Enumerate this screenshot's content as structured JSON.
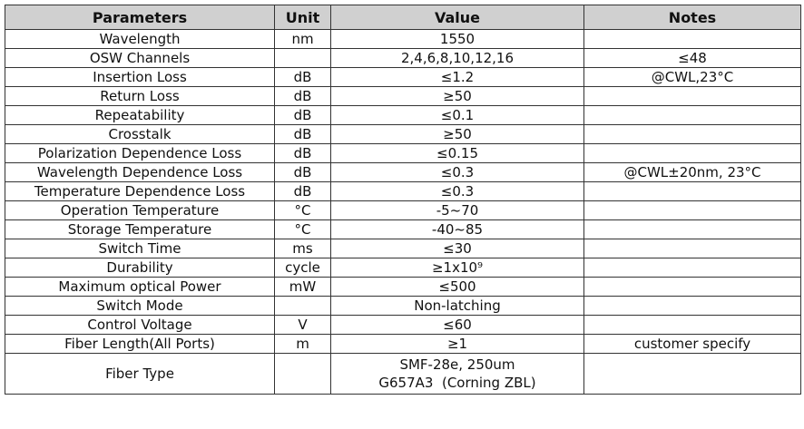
{
  "headers": {
    "parameters": "Parameters",
    "unit": "Unit",
    "value": "Value",
    "notes": "Notes"
  },
  "rows": [
    {
      "parameter": "Wavelength",
      "unit": "nm",
      "value": "1550",
      "notes": ""
    },
    {
      "parameter": "OSW Channels",
      "unit": "",
      "value": "2,4,6,8,10,12,16",
      "notes": "≤48"
    },
    {
      "parameter": "Insertion Loss",
      "unit": "dB",
      "value": "≤1.2",
      "notes": "@CWL,23°C"
    },
    {
      "parameter": "Return Loss",
      "unit": "dB",
      "value": "≥50",
      "notes": ""
    },
    {
      "parameter": "Repeatability",
      "unit": "dB",
      "value": "≤0.1",
      "notes": ""
    },
    {
      "parameter": "Crosstalk",
      "unit": "dB",
      "value": "≥50",
      "notes": ""
    },
    {
      "parameter": "Polarization Dependence Loss",
      "unit": "dB",
      "value": "≤0.15",
      "notes": ""
    },
    {
      "parameter": "Wavelength Dependence Loss",
      "unit": "dB",
      "value": "≤0.3",
      "notes": "@CWL±20nm, 23°C"
    },
    {
      "parameter": "Temperature Dependence Loss",
      "unit": "dB",
      "value": "≤0.3",
      "notes": ""
    },
    {
      "parameter": "Operation Temperature",
      "unit": "°C",
      "value": "-5~70",
      "notes": ""
    },
    {
      "parameter": "Storage Temperature",
      "unit": "°C",
      "value": "-40~85",
      "notes": ""
    },
    {
      "parameter": "Switch Time",
      "unit": "ms",
      "value": "≤30",
      "notes": ""
    },
    {
      "parameter": "Durability",
      "unit": "cycle",
      "value": "≥1x10⁹",
      "notes": ""
    },
    {
      "parameter": "Maximum optical Power",
      "unit": "mW",
      "value": "≤500",
      "notes": ""
    },
    {
      "parameter": "Switch Mode",
      "unit": "",
      "value": "Non-latching",
      "notes": ""
    },
    {
      "parameter": "Control Voltage",
      "unit": "V",
      "value": "≤60",
      "notes": ""
    },
    {
      "parameter": "Fiber Length(All Ports)",
      "unit": "m",
      "value": "≥1",
      "notes": "customer specify"
    }
  ],
  "last_row": {
    "parameter": "Fiber Type",
    "unit": "",
    "value_line1": "SMF-28e, 250um",
    "value_line2": "G657A3  (Corning ZBL)",
    "notes": ""
  }
}
